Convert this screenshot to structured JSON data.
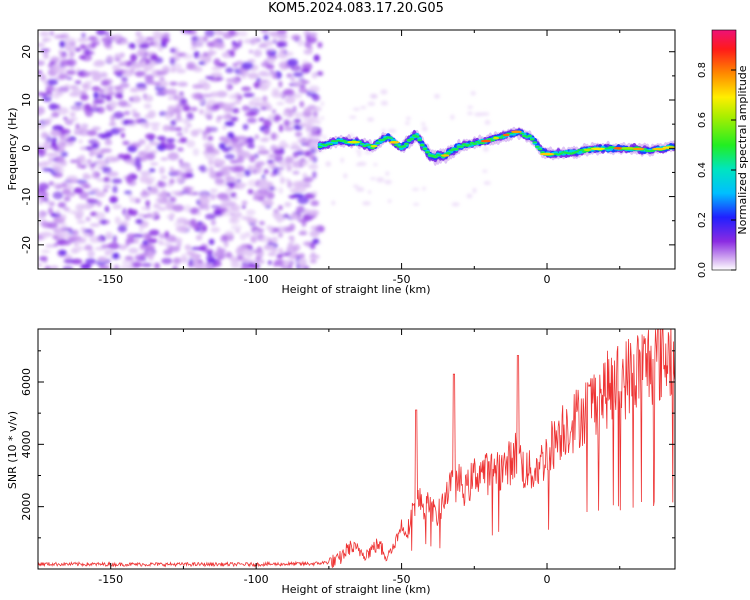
{
  "title": "KOM5.2024.083.17.20.G05",
  "chart_data": [
    {
      "type": "heatmap",
      "xlabel": "Height of straight line (km)",
      "ylabel": "Frequency (Hz)",
      "xlim": [
        -175,
        44
      ],
      "ylim": [
        -25,
        24.5
      ],
      "x_ticks": [
        -150,
        -100,
        -50,
        0
      ],
      "y_ticks": [
        -20,
        -10,
        0,
        10,
        20
      ],
      "description_track": [
        [
          -78,
          0.5
        ],
        [
          -72,
          1.5
        ],
        [
          -65,
          1.2
        ],
        [
          -60,
          0.2
        ],
        [
          -55,
          2.5
        ],
        [
          -50,
          0
        ],
        [
          -45,
          2.8
        ],
        [
          -40,
          -1.8
        ],
        [
          -35,
          -1.5
        ],
        [
          -30,
          0.5
        ],
        [
          -25,
          1.0
        ],
        [
          -20,
          1.6
        ],
        [
          -15,
          2.6
        ],
        [
          -10,
          3.5
        ],
        [
          -5,
          2.0
        ],
        [
          -2,
          -0.5
        ],
        [
          0,
          -1.2
        ],
        [
          5,
          -1.0
        ],
        [
          10,
          -0.8
        ],
        [
          15,
          -0.2
        ],
        [
          20,
          0.0
        ],
        [
          25,
          0.0
        ],
        [
          30,
          0.0
        ],
        [
          35,
          -0.5
        ],
        [
          40,
          0.0
        ],
        [
          44,
          0.3
        ]
      ],
      "colorbar": {
        "label": "Normalized spectral amplitude",
        "range": [
          0.0,
          0.96
        ],
        "ticks": [
          0.0,
          0.2,
          0.4,
          0.6,
          0.8
        ],
        "tick_labels": [
          "0.0",
          "0.2",
          "0.4",
          "0.6",
          "0.8"
        ]
      }
    },
    {
      "type": "line",
      "xlabel": "Height of straight line (km)",
      "ylabel": "SNR (10 * v/v)",
      "xlim": [
        -175,
        44
      ],
      "ylim": [
        0,
        7700
      ],
      "x_ticks": [
        -150,
        -100,
        -50,
        0
      ],
      "y_ticks": [
        2000,
        4000,
        6000
      ],
      "color": "#ee3333",
      "series": [
        {
          "x": [
            -175,
            -150,
            -125,
            -100,
            -80,
            -72,
            -68,
            -62,
            -58,
            -55,
            -52,
            -50,
            -48,
            -45,
            -42,
            -40,
            -38,
            -35,
            -32,
            -30,
            -28,
            -25,
            -22,
            -20,
            -18,
            -15,
            -12,
            -10,
            -8,
            -5,
            -2,
            0,
            5,
            10,
            15,
            20,
            25,
            30,
            35,
            40,
            44
          ],
          "y": [
            160,
            150,
            150,
            150,
            170,
            250,
            700,
            500,
            800,
            400,
            900,
            1400,
            1200,
            2300,
            2000,
            2100,
            1600,
            2400,
            2700,
            2800,
            2500,
            3000,
            3200,
            3000,
            3300,
            3200,
            3500,
            3800,
            3200,
            3100,
            3400,
            3700,
            4500,
            4800,
            5300,
            5700,
            6000,
            6300,
            6600,
            6800,
            7000
          ]
        }
      ],
      "annotations_spikes": [
        {
          "x": -45,
          "y": 5100
        },
        {
          "x": -32,
          "y": 6250
        },
        {
          "x": -10,
          "y": 6850
        }
      ]
    }
  ]
}
